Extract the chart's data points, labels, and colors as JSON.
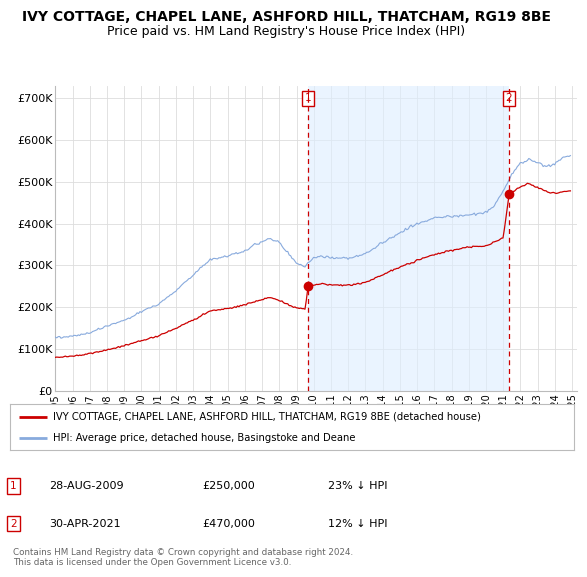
{
  "title": "IVY COTTAGE, CHAPEL LANE, ASHFORD HILL, THATCHAM, RG19 8BE",
  "subtitle": "Price paid vs. HM Land Registry's House Price Index (HPI)",
  "title_fontsize": 10,
  "subtitle_fontsize": 9,
  "ylabel_ticks": [
    "£0",
    "£100K",
    "£200K",
    "£300K",
    "£400K",
    "£500K",
    "£600K",
    "£700K"
  ],
  "ytick_vals": [
    0,
    100000,
    200000,
    300000,
    400000,
    500000,
    600000,
    700000
  ],
  "ylim": [
    0,
    730000
  ],
  "xlim_start": 1995.0,
  "xlim_end": 2025.3,
  "background_color": "#ffffff",
  "grid_color": "#dddddd",
  "hpi_color": "#88aadd",
  "property_color": "#cc0000",
  "shade_color": "#ddeeff",
  "purchase1_year": 2009.67,
  "purchase2_year": 2021.33,
  "purchase1_price": 250000,
  "purchase2_price": 470000,
  "legend_label1": "IVY COTTAGE, CHAPEL LANE, ASHFORD HILL, THATCHAM, RG19 8BE (detached house)",
  "legend_label2": "HPI: Average price, detached house, Basingstoke and Deane",
  "note1_num": "1",
  "note1_date": "28-AUG-2009",
  "note1_price": "£250,000",
  "note1_pct": "23% ↓ HPI",
  "note2_num": "2",
  "note2_date": "30-APR-2021",
  "note2_price": "£470,000",
  "note2_pct": "12% ↓ HPI",
  "footer": "Contains HM Land Registry data © Crown copyright and database right 2024.\nThis data is licensed under the Open Government Licence v3.0."
}
